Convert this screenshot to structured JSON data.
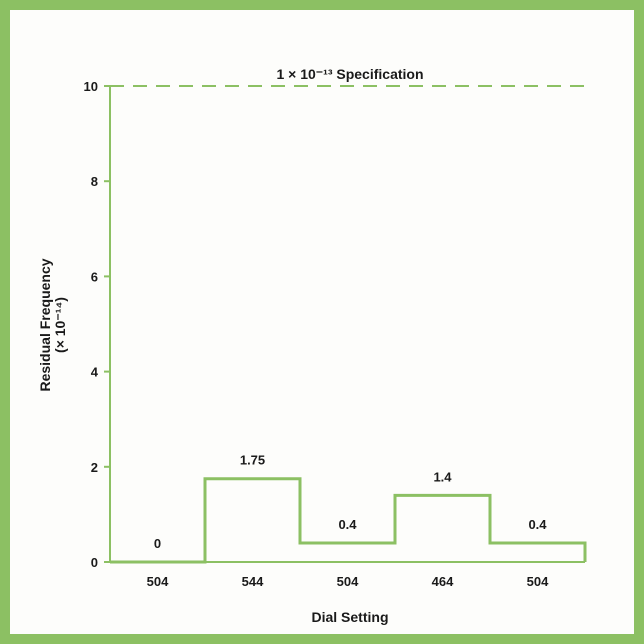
{
  "chart_data": {
    "type": "line",
    "step": true,
    "xlabel": "Dial Setting",
    "ylabel_line1": "Residual Frequency",
    "ylabel_line2": "(× 10⁻¹⁴)",
    "ylim": [
      0,
      10
    ],
    "yticks": [
      0,
      2,
      4,
      6,
      8,
      10
    ],
    "categories": [
      "504",
      "544",
      "504",
      "464",
      "504"
    ],
    "values": [
      0,
      1.75,
      0.4,
      1.4,
      0.4
    ],
    "data_labels": [
      "0",
      "1.75",
      "0.4",
      "1.4",
      "0.4"
    ],
    "reference_line": {
      "value": 10,
      "label": "1 × 10⁻¹³ Specification",
      "style": "dashed"
    },
    "grid": false,
    "colors": {
      "series": "#8cc063",
      "frame": "#8cc063",
      "text": "#1a1a1a"
    }
  }
}
